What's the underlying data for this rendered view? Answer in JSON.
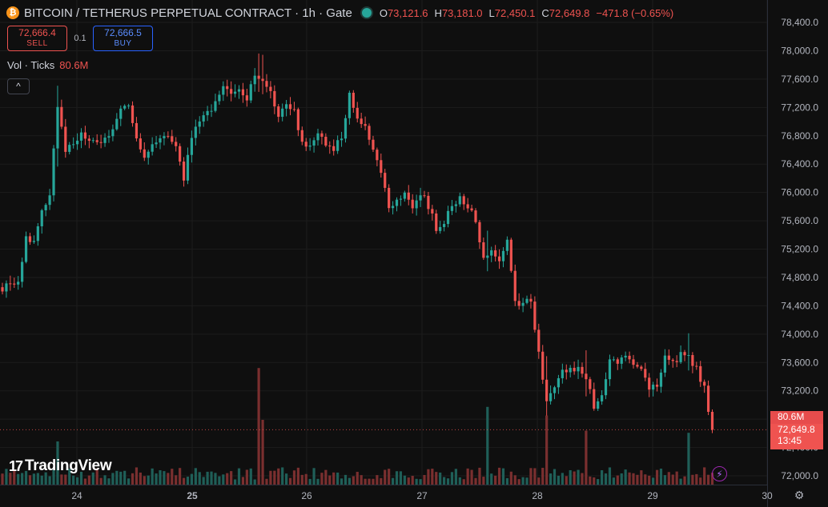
{
  "symbol": {
    "title": "BITCOIN / TETHERUS PERPETUAL CONTRACT · 1h · Gate",
    "icon": "bitcoin-icon",
    "icon_glyph": "₿"
  },
  "ohlc": {
    "o_label": "O",
    "o": "73,121.6",
    "h_label": "H",
    "h": "73,181.0",
    "l_label": "L",
    "l": "72,450.1",
    "c_label": "C",
    "c": "72,649.8",
    "change": "−471.8 (−0.65%)"
  },
  "trade": {
    "sell_price": "72,666.4",
    "sell_label": "SELL",
    "spread": "0.1",
    "buy_price": "72,666.5",
    "buy_label": "BUY"
  },
  "volume_indicator": {
    "label": "Vol · Ticks",
    "value": "80.6M"
  },
  "collapse_glyph": "^",
  "logo": {
    "mark": "17",
    "text": "TradingView"
  },
  "badges": {
    "volume": "80.6M",
    "price": "72,649.8",
    "countdown": "13:45"
  },
  "colors": {
    "up": "#26a69a",
    "down": "#ef5350",
    "background": "#0f0f0f",
    "grid": "#1c1c1c"
  },
  "chart_data": {
    "type": "candlestick",
    "price_ticks": [
      "78,400.0",
      "78,000.0",
      "77,600.0",
      "77,200.0",
      "76,800.0",
      "76,400.0",
      "76,000.0",
      "75,600.0",
      "75,200.0",
      "74,800.0",
      "74,400.0",
      "74,000.0",
      "73,600.0",
      "73,200.0",
      "72,800.0",
      "72,400.0",
      "72,000.0"
    ],
    "ylim": [
      71980,
      78560
    ],
    "time_labels": [
      {
        "label": "24",
        "bold": false
      },
      {
        "label": "25",
        "bold": true
      },
      {
        "label": "26",
        "bold": false
      },
      {
        "label": "27",
        "bold": false
      },
      {
        "label": "28",
        "bold": false
      },
      {
        "label": "29",
        "bold": false
      },
      {
        "label": "30",
        "bold": false
      }
    ],
    "last_price": 72649.8,
    "grid": true,
    "keypoints": [
      [
        0,
        74650
      ],
      [
        2,
        74700
      ],
      [
        4,
        74720
      ],
      [
        6,
        75350
      ],
      [
        8,
        75350
      ],
      [
        10,
        75700
      ],
      [
        12,
        76000
      ],
      [
        14,
        77200
      ],
      [
        16,
        76600
      ],
      [
        18,
        76700
      ],
      [
        20,
        76800
      ],
      [
        22,
        76700
      ],
      [
        24,
        76700
      ],
      [
        26,
        76750
      ],
      [
        28,
        76900
      ],
      [
        30,
        77150
      ],
      [
        32,
        77200
      ],
      [
        34,
        76750
      ],
      [
        36,
        76450
      ],
      [
        38,
        76700
      ],
      [
        40,
        76800
      ],
      [
        42,
        76750
      ],
      [
        44,
        76600
      ],
      [
        46,
        76200
      ],
      [
        48,
        76800
      ],
      [
        50,
        77000
      ],
      [
        52,
        77100
      ],
      [
        54,
        77300
      ],
      [
        56,
        77500
      ],
      [
        58,
        77350
      ],
      [
        60,
        77450
      ],
      [
        62,
        77300
      ],
      [
        64,
        77650
      ],
      [
        66,
        77600
      ],
      [
        68,
        77400
      ],
      [
        70,
        77100
      ],
      [
        72,
        77250
      ],
      [
        74,
        77150
      ],
      [
        76,
        76700
      ],
      [
        78,
        76650
      ],
      [
        80,
        76800
      ],
      [
        82,
        76700
      ],
      [
        84,
        76600
      ],
      [
        86,
        76800
      ],
      [
        88,
        77400
      ],
      [
        90,
        77000
      ],
      [
        92,
        76900
      ],
      [
        94,
        76600
      ],
      [
        96,
        76300
      ],
      [
        98,
        75800
      ],
      [
        100,
        75900
      ],
      [
        102,
        76000
      ],
      [
        104,
        75800
      ],
      [
        106,
        76000
      ],
      [
        108,
        75800
      ],
      [
        110,
        75500
      ],
      [
        112,
        75600
      ],
      [
        114,
        75800
      ],
      [
        116,
        75900
      ],
      [
        118,
        75800
      ],
      [
        120,
        75600
      ],
      [
        122,
        75100
      ],
      [
        124,
        75200
      ],
      [
        126,
        75000
      ],
      [
        128,
        75300
      ],
      [
        130,
        74500
      ],
      [
        132,
        74400
      ],
      [
        134,
        74500
      ],
      [
        136,
        73700
      ],
      [
        138,
        73100
      ],
      [
        140,
        73300
      ],
      [
        142,
        73500
      ],
      [
        144,
        73500
      ],
      [
        146,
        73500
      ],
      [
        148,
        73400
      ],
      [
        150,
        73000
      ],
      [
        152,
        73150
      ],
      [
        154,
        73600
      ],
      [
        156,
        73600
      ],
      [
        158,
        73700
      ],
      [
        160,
        73600
      ],
      [
        162,
        73550
      ],
      [
        164,
        73200
      ],
      [
        166,
        73300
      ],
      [
        168,
        73650
      ],
      [
        170,
        73600
      ],
      [
        172,
        73700
      ],
      [
        174,
        73650
      ],
      [
        176,
        73500
      ],
      [
        178,
        73250
      ],
      [
        180,
        72650
      ]
    ],
    "volume_spikes": {
      "14": 1.0,
      "65": 2.7,
      "66": 1.5,
      "123": 1.8,
      "138": 1.6,
      "148": 1.25,
      "174": 1.2
    }
  }
}
